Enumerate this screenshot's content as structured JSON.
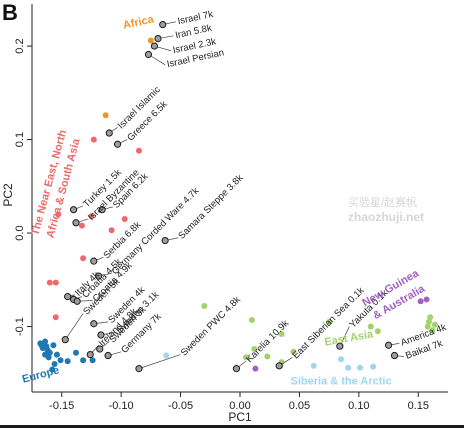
{
  "figure": {
    "panel_letter": "B",
    "next_panel_glyph": "(",
    "watermark": {
      "line1": "买验星/赵赛帆",
      "line2": "zhaozhuji.net"
    }
  },
  "chart_data": {
    "type": "scatter",
    "xlabel": "PC1",
    "ylabel": "PC2",
    "xlim": [
      -0.175,
      0.175
    ],
    "ylim": [
      -0.17,
      0.245
    ],
    "xticks": [
      -0.15,
      -0.1,
      -0.05,
      0.0,
      0.05,
      0.1,
      0.15
    ],
    "xtick_labels": [
      "-0.15",
      "-0.10",
      "-0.05",
      "0.00",
      "0.05",
      "0.10",
      "0.15"
    ],
    "yticks": [
      -0.1,
      0.0,
      0.1,
      0.2
    ],
    "ytick_labels": [
      "-0.1",
      "0.0",
      "0.1",
      "0.2"
    ],
    "grid": false,
    "legend": "none",
    "colors": {
      "africa": "#f0952a",
      "near_east": "#ee6a6a",
      "europe": "#1f78b4",
      "siberia": "#9fd5ef",
      "east_asia": "#a1d36a",
      "new_guinea": "#a45fc2",
      "ancient_fill": "#9e9e9e",
      "ancient_edge": "#1a1a1a"
    },
    "regions": [
      {
        "label": "Africa",
        "color": "#f0952a",
        "x": -0.085,
        "y": 0.222,
        "rotate": -12
      },
      {
        "label": "The Near East, North",
        "color": "#ee6a6a",
        "x": -0.158,
        "y": 0.053,
        "rotate": -75
      },
      {
        "label": "Africa & South Asia",
        "color": "#ee6a6a",
        "x": -0.146,
        "y": 0.047,
        "rotate": -75
      },
      {
        "label": "Europe",
        "color": "#1f78b4",
        "x": -0.167,
        "y": -0.155,
        "rotate": -15
      },
      {
        "label": "Siberia & the Arctic",
        "color": "#9fd5ef",
        "x": 0.085,
        "y": -0.162,
        "rotate": 0
      },
      {
        "label": "East Asia",
        "color": "#a1d36a",
        "x": 0.092,
        "y": -0.116,
        "rotate": -10
      },
      {
        "label": "New Guinea",
        "color": "#a45fc2",
        "x": 0.128,
        "y": -0.062,
        "rotate": -30
      },
      {
        "label": "& Australia",
        "color": "#a45fc2",
        "x": 0.135,
        "y": -0.077,
        "rotate": -30
      }
    ],
    "modern_groups": [
      {
        "group": "Africa",
        "color": "#f0952a",
        "points": [
          [
            -0.075,
            0.206
          ],
          [
            -0.113,
            0.126
          ]
        ]
      },
      {
        "group": "Near East, North Africa & South Asia",
        "color": "#ee6a6a",
        "points": [
          [
            -0.123,
            0.1
          ],
          [
            -0.085,
            0.088
          ],
          [
            -0.153,
            0.02
          ],
          [
            -0.125,
            0.018
          ],
          [
            -0.097,
            0.015
          ],
          [
            -0.133,
            0.008
          ],
          [
            -0.108,
            0.003
          ],
          [
            -0.132,
            -0.027
          ],
          [
            -0.155,
            -0.053
          ],
          [
            -0.16,
            -0.053
          ],
          [
            -0.14,
            -0.07
          ],
          [
            -0.155,
            -0.09
          ]
        ]
      },
      {
        "group": "Europe",
        "color": "#1f78b4",
        "points": [
          [
            -0.164,
            -0.116
          ],
          [
            -0.165,
            -0.118
          ],
          [
            -0.167,
            -0.12
          ],
          [
            -0.163,
            -0.121
          ],
          [
            -0.166,
            -0.123
          ],
          [
            -0.162,
            -0.125
          ],
          [
            -0.168,
            -0.118
          ],
          [
            -0.16,
            -0.128
          ],
          [
            -0.164,
            -0.13
          ],
          [
            -0.161,
            -0.133
          ],
          [
            -0.157,
            -0.12
          ],
          [
            -0.154,
            -0.13
          ],
          [
            -0.151,
            -0.136
          ],
          [
            -0.156,
            -0.14
          ],
          [
            -0.158,
            -0.146
          ],
          [
            -0.145,
            -0.137
          ],
          [
            -0.138,
            -0.128
          ],
          [
            -0.132,
            -0.136
          ],
          [
            -0.124,
            -0.136
          ]
        ]
      },
      {
        "group": "Siberia & the Arctic",
        "color": "#9fd5ef",
        "points": [
          [
            -0.085,
            -0.145
          ],
          [
            -0.062,
            -0.131
          ],
          [
            0.062,
            -0.142
          ],
          [
            0.091,
            -0.144
          ],
          [
            0.101,
            -0.144
          ],
          [
            0.085,
            -0.135
          ],
          [
            0.112,
            -0.143
          ]
        ]
      },
      {
        "group": "East Asia",
        "color": "#a1d36a",
        "points": [
          [
            -0.03,
            -0.078
          ],
          [
            0.01,
            -0.093
          ],
          [
            0.035,
            -0.108
          ],
          [
            0.045,
            -0.127
          ],
          [
            0.035,
            -0.138
          ],
          [
            0.023,
            -0.132
          ],
          [
            0.012,
            -0.124
          ],
          [
            0.005,
            -0.133
          ],
          [
            0.075,
            -0.095
          ],
          [
            0.11,
            -0.1
          ],
          [
            0.116,
            -0.105
          ],
          [
            0.158,
            -0.1
          ],
          [
            0.159,
            -0.095
          ],
          [
            0.162,
            -0.104
          ],
          [
            0.164,
            -0.098
          ],
          [
            0.16,
            -0.09
          ]
        ]
      },
      {
        "group": "New Guinea & Australia",
        "color": "#a45fc2",
        "points": [
          [
            0.152,
            -0.073
          ],
          [
            0.157,
            -0.071
          ],
          [
            0.013,
            -0.145
          ]
        ]
      }
    ],
    "ancient_samples": [
      {
        "label": "Israel 7k",
        "x": -0.065,
        "y": 0.223,
        "lx": -0.054,
        "ly": 0.226,
        "rot": -12
      },
      {
        "label": "Iran 5.8k",
        "x": -0.069,
        "y": 0.208,
        "lx": -0.056,
        "ly": 0.211,
        "rot": -12
      },
      {
        "label": "Israel 2.3k",
        "x": -0.072,
        "y": 0.2,
        "lx": -0.058,
        "ly": 0.195,
        "rot": -12
      },
      {
        "label": "Israel Persian",
        "x": -0.077,
        "y": 0.191,
        "lx": -0.063,
        "ly": 0.18,
        "rot": -12
      },
      {
        "label": "Israel Islamic",
        "x": -0.11,
        "y": 0.107,
        "lx": -0.103,
        "ly": 0.113,
        "rot": -45
      },
      {
        "label": "Greece 6.5k",
        "x": -0.103,
        "y": 0.095,
        "lx": -0.095,
        "ly": 0.1,
        "rot": -45
      },
      {
        "label": "Turkey 1.5k",
        "x": -0.14,
        "y": 0.025,
        "lx": -0.132,
        "ly": 0.029,
        "rot": -45
      },
      {
        "label": "Spain 6.2k",
        "x": -0.116,
        "y": 0.025,
        "lx": -0.107,
        "ly": 0.028,
        "rot": -45
      },
      {
        "label": "Israel Byzantine",
        "x": -0.138,
        "y": 0.011,
        "lx": -0.128,
        "ly": 0.015,
        "rot": -45
      },
      {
        "label": "Serbia 6.8k",
        "x": -0.123,
        "y": -0.03,
        "lx": -0.115,
        "ly": -0.026,
        "rot": -45
      },
      {
        "label": "Germany Corded Ware 4.7k",
        "x": -0.119,
        "y": -0.046,
        "lx": -0.108,
        "ly": -0.043,
        "rot": -45
      },
      {
        "label": "Samara Steppe 3.8k",
        "x": -0.063,
        "y": -0.008,
        "lx": -0.052,
        "ly": -0.005,
        "rot": -45
      },
      {
        "label": "Italy 4k",
        "x": -0.145,
        "y": -0.068,
        "lx": -0.139,
        "ly": -0.066,
        "rot": -45
      },
      {
        "label": "Croatia 4.5k",
        "x": -0.14,
        "y": -0.071,
        "lx": -0.133,
        "ly": -0.068,
        "rot": -45
      },
      {
        "label": "Croatia 4.9k",
        "x": -0.137,
        "y": -0.073,
        "lx": -0.124,
        "ly": -0.072,
        "rot": -45
      },
      {
        "label": "Sweden 5k",
        "x": -0.147,
        "y": -0.114,
        "lx": -0.132,
        "ly": -0.086,
        "rot": -45
      },
      {
        "label": "Sweden 4k",
        "x": -0.123,
        "y": -0.097,
        "lx": -0.111,
        "ly": -0.095,
        "rot": -45
      },
      {
        "label": "Sweden 3.1k",
        "x": -0.117,
        "y": -0.109,
        "lx": -0.104,
        "ly": -0.106,
        "rot": -45
      },
      {
        "label": "Ireland 4.8k",
        "x": -0.126,
        "y": -0.13,
        "lx": -0.119,
        "ly": -0.12,
        "rot": -45
      },
      {
        "label": "Sweden 3k",
        "x": -0.118,
        "y": -0.124,
        "lx": -0.11,
        "ly": -0.116,
        "rot": -45
      },
      {
        "label": "Germany 7k",
        "x": -0.111,
        "y": -0.131,
        "lx": -0.1,
        "ly": -0.127,
        "rot": -45
      },
      {
        "label": "Sweden PWC 4.8k",
        "x": -0.085,
        "y": -0.145,
        "lx": -0.05,
        "ly": -0.13,
        "rot": -45
      },
      {
        "label": "Karelia 10.9k",
        "x": -0.003,
        "y": -0.145,
        "lx": 0.005,
        "ly": -0.137,
        "rot": -45
      },
      {
        "label": "East Siberian Sea 0.1k",
        "x": 0.033,
        "y": -0.142,
        "lx": 0.044,
        "ly": -0.133,
        "rot": -45
      },
      {
        "label": "Yakuta 0.1k",
        "x": 0.084,
        "y": -0.121,
        "lx": 0.092,
        "ly": -0.1,
        "rot": -45
      },
      {
        "label": "America 4k",
        "x": 0.125,
        "y": -0.12,
        "lx": 0.134,
        "ly": -0.118,
        "rot": -20
      },
      {
        "label": "Baikal 7k",
        "x": 0.13,
        "y": -0.131,
        "lx": 0.138,
        "ly": -0.132,
        "rot": -20
      }
    ]
  }
}
